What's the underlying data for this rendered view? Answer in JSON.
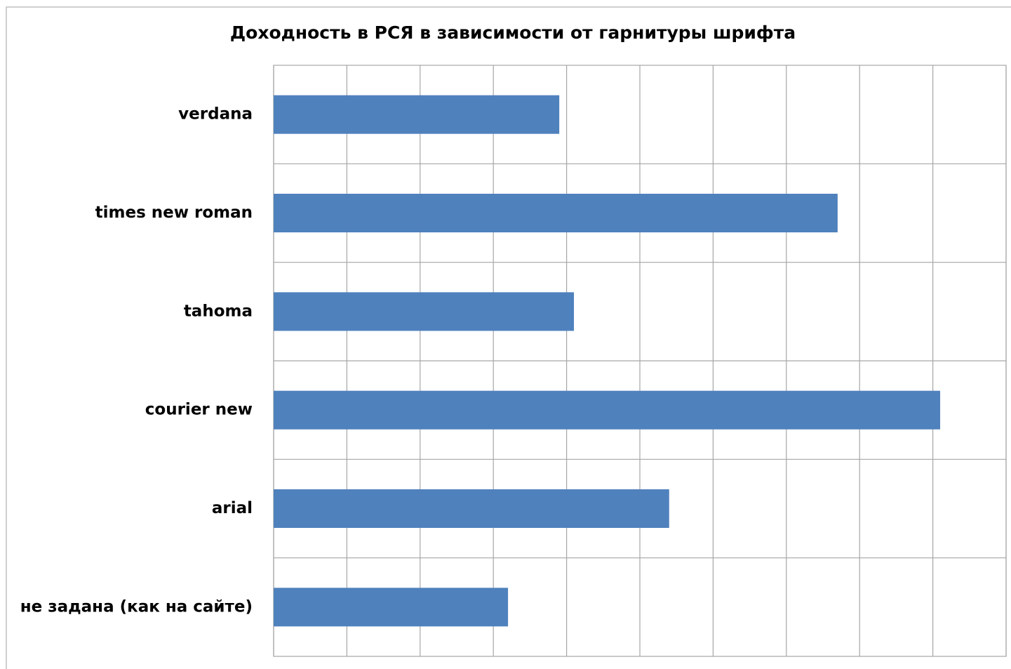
{
  "chart_data": {
    "type": "hbar",
    "title": "Доходность в РСЯ в зависимости от гарнитуры шрифта",
    "categories": [
      "verdana",
      "times new roman",
      "tahoma",
      "courier new",
      "arial",
      "не задана  (как на сайте)"
    ],
    "values": [
      3.9,
      7.7,
      4.1,
      9.1,
      5.4,
      3.2
    ],
    "color": "#4f81bd",
    "xlim": [
      0,
      10
    ],
    "xticks": [
      0,
      1,
      2,
      3,
      4,
      5,
      6,
      7,
      8,
      9,
      10
    ],
    "grid": true
  }
}
